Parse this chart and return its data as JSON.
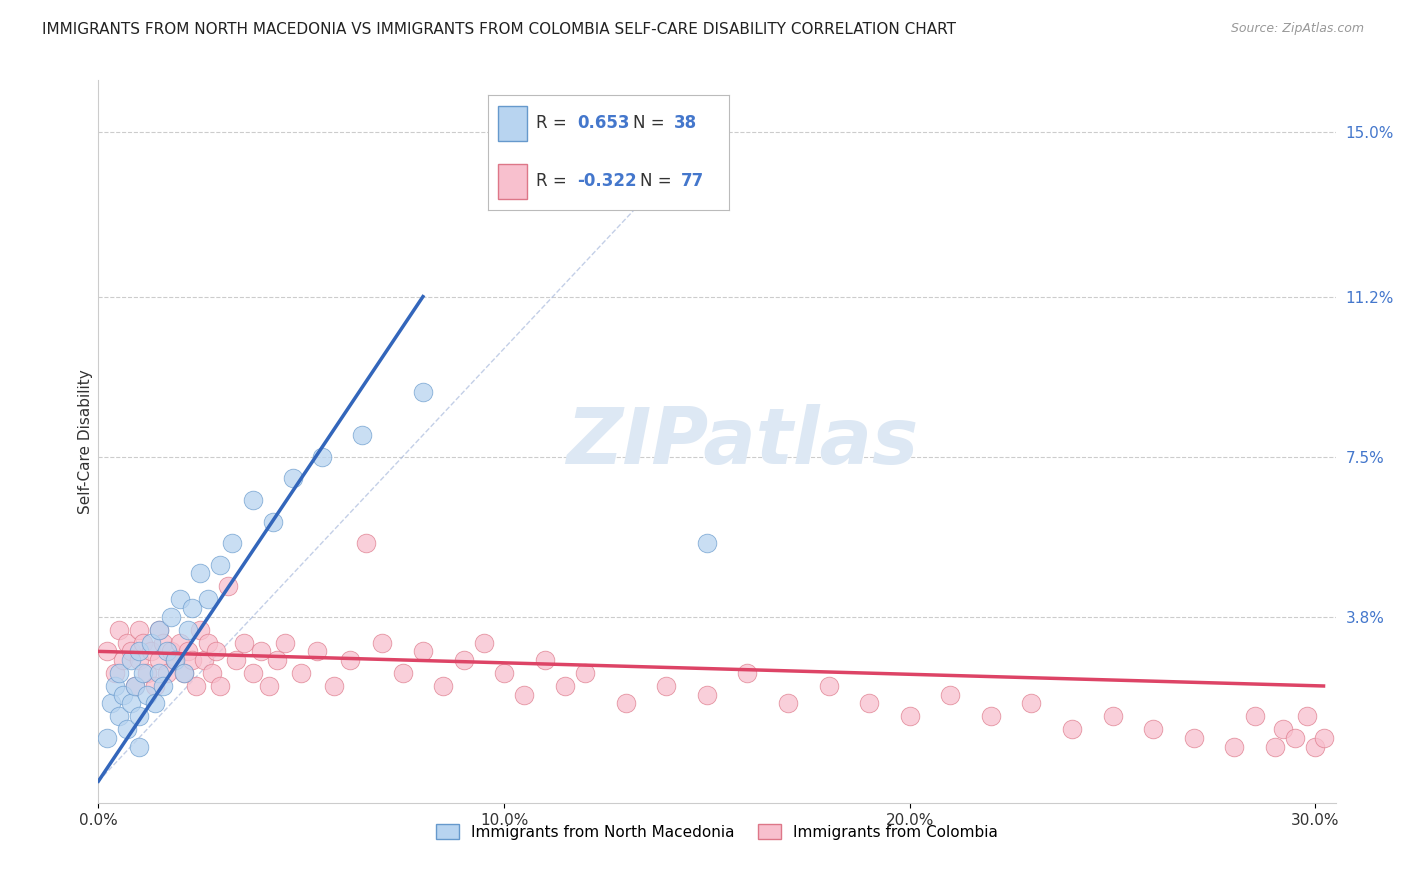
{
  "title": "IMMIGRANTS FROM NORTH MACEDONIA VS IMMIGRANTS FROM COLOMBIA SELF-CARE DISABILITY CORRELATION CHART",
  "source": "Source: ZipAtlas.com",
  "ylabel": "Self-Care Disability",
  "xlim": [
    0.0,
    0.305
  ],
  "ylim": [
    -0.005,
    0.162
  ],
  "xticks": [
    0.0,
    0.1,
    0.2,
    0.3
  ],
  "xtick_labels": [
    "0.0%",
    "10.0%",
    "20.0%",
    "30.0%"
  ],
  "yticks": [
    0.038,
    0.075,
    0.112,
    0.15
  ],
  "ytick_labels": [
    "3.8%",
    "7.5%",
    "11.2%",
    "15.0%"
  ],
  "R_blue": 0.653,
  "N_blue": 38,
  "R_pink": -0.322,
  "N_pink": 77,
  "legend1_label": "Immigrants from North Macedonia",
  "legend2_label": "Immigrants from Colombia",
  "blue_fill_color": "#b8d4f0",
  "blue_edge_color": "#6699cc",
  "pink_fill_color": "#f8c0ce",
  "pink_edge_color": "#dd7788",
  "blue_line_color": "#3366bb",
  "pink_line_color": "#dd4466",
  "diag_color": "#aabbdd",
  "background_color": "#ffffff",
  "grid_color": "#cccccc",
  "watermark_text": "ZIPatlas",
  "watermark_color": "#dde8f4",
  "blue_scatter_x": [
    0.002,
    0.003,
    0.004,
    0.005,
    0.005,
    0.006,
    0.007,
    0.008,
    0.008,
    0.009,
    0.01,
    0.01,
    0.01,
    0.011,
    0.012,
    0.013,
    0.014,
    0.015,
    0.015,
    0.016,
    0.017,
    0.018,
    0.019,
    0.02,
    0.021,
    0.022,
    0.023,
    0.025,
    0.027,
    0.03,
    0.033,
    0.038,
    0.043,
    0.048,
    0.055,
    0.065,
    0.08,
    0.15
  ],
  "blue_scatter_y": [
    0.01,
    0.018,
    0.022,
    0.015,
    0.025,
    0.02,
    0.012,
    0.028,
    0.018,
    0.022,
    0.008,
    0.015,
    0.03,
    0.025,
    0.02,
    0.032,
    0.018,
    0.025,
    0.035,
    0.022,
    0.03,
    0.038,
    0.028,
    0.042,
    0.025,
    0.035,
    0.04,
    0.048,
    0.042,
    0.05,
    0.055,
    0.065,
    0.06,
    0.07,
    0.075,
    0.08,
    0.09,
    0.055
  ],
  "pink_scatter_x": [
    0.002,
    0.004,
    0.005,
    0.006,
    0.007,
    0.008,
    0.009,
    0.01,
    0.01,
    0.011,
    0.012,
    0.013,
    0.014,
    0.015,
    0.015,
    0.016,
    0.017,
    0.018,
    0.019,
    0.02,
    0.021,
    0.022,
    0.023,
    0.024,
    0.025,
    0.026,
    0.027,
    0.028,
    0.029,
    0.03,
    0.032,
    0.034,
    0.036,
    0.038,
    0.04,
    0.042,
    0.044,
    0.046,
    0.05,
    0.054,
    0.058,
    0.062,
    0.066,
    0.07,
    0.075,
    0.08,
    0.085,
    0.09,
    0.095,
    0.1,
    0.105,
    0.11,
    0.115,
    0.12,
    0.13,
    0.14,
    0.15,
    0.16,
    0.17,
    0.18,
    0.19,
    0.2,
    0.21,
    0.22,
    0.23,
    0.24,
    0.25,
    0.26,
    0.27,
    0.28,
    0.285,
    0.29,
    0.292,
    0.295,
    0.298,
    0.3,
    0.302
  ],
  "pink_scatter_y": [
    0.03,
    0.025,
    0.035,
    0.028,
    0.032,
    0.03,
    0.022,
    0.035,
    0.028,
    0.032,
    0.025,
    0.03,
    0.022,
    0.035,
    0.028,
    0.032,
    0.025,
    0.03,
    0.028,
    0.032,
    0.025,
    0.03,
    0.028,
    0.022,
    0.035,
    0.028,
    0.032,
    0.025,
    0.03,
    0.022,
    0.045,
    0.028,
    0.032,
    0.025,
    0.03,
    0.022,
    0.028,
    0.032,
    0.025,
    0.03,
    0.022,
    0.028,
    0.055,
    0.032,
    0.025,
    0.03,
    0.022,
    0.028,
    0.032,
    0.025,
    0.02,
    0.028,
    0.022,
    0.025,
    0.018,
    0.022,
    0.02,
    0.025,
    0.018,
    0.022,
    0.018,
    0.015,
    0.02,
    0.015,
    0.018,
    0.012,
    0.015,
    0.012,
    0.01,
    0.008,
    0.015,
    0.008,
    0.012,
    0.01,
    0.015,
    0.008,
    0.01
  ],
  "blue_trendline_x": [
    0.0,
    0.112
  ],
  "blue_trendline_y": [
    0.0,
    0.112
  ],
  "pink_trendline_x0": 0.0,
  "pink_trendline_x1": 0.302,
  "pink_trendline_y0": 0.03,
  "pink_trendline_y1": 0.022,
  "title_fontsize": 11,
  "tick_fontsize": 11,
  "ylabel_fontsize": 11
}
